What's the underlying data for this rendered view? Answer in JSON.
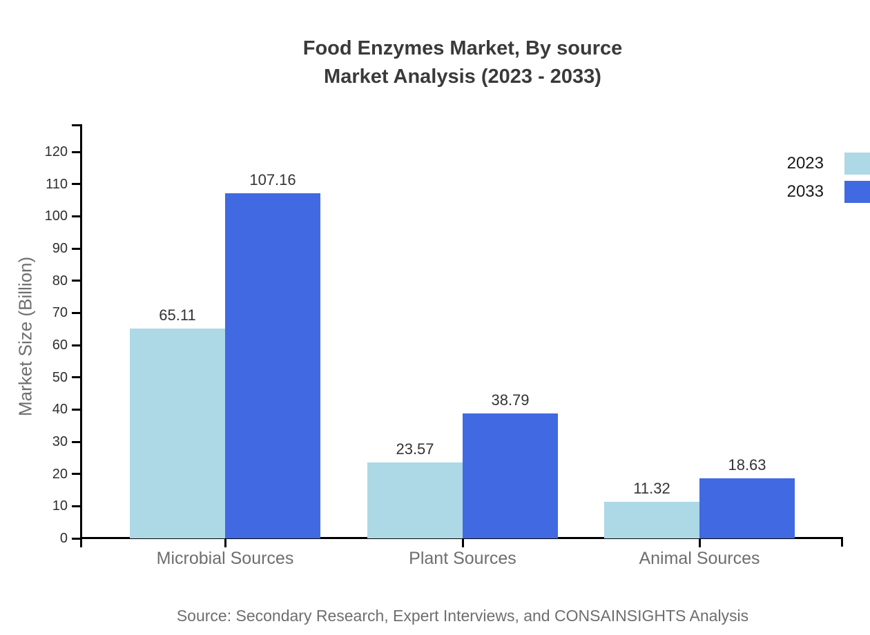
{
  "title": {
    "line1": "Food Enzymes Market, By source",
    "line2": "Market Analysis (2023 - 2033)"
  },
  "source_note": "Source: Secondary Research, Expert Interviews, and CONSAINSIGHTS Analysis",
  "chart_data": {
    "type": "bar",
    "title": "Food Enzymes Market, By source Market Analysis (2023 - 2033)",
    "categories": [
      "Microbial Sources",
      "Plant Sources",
      "Animal Sources"
    ],
    "series": [
      {
        "name": "2023",
        "color": "#ADD8E6",
        "values": [
          65.11,
          23.57,
          11.32
        ]
      },
      {
        "name": "2033",
        "color": "#4169E1",
        "values": [
          107.16,
          38.79,
          18.63
        ]
      }
    ],
    "xlabel": "",
    "ylabel": "Market Size (Billion)",
    "ylim": [
      0,
      120
    ],
    "yticks": [
      0,
      10,
      20,
      30,
      40,
      50,
      60,
      70,
      80,
      90,
      100,
      110,
      120
    ],
    "grid": false,
    "legend_position": "top-right",
    "value_label_decimals": 2,
    "colors": {
      "axis": "#000000",
      "title_text": "#3a3a3a",
      "tick_label_text": "#2e2e2e",
      "value_label_text": "#333333",
      "muted_text": "#6e6e6e",
      "legend_text": "#1a1a1a"
    }
  }
}
